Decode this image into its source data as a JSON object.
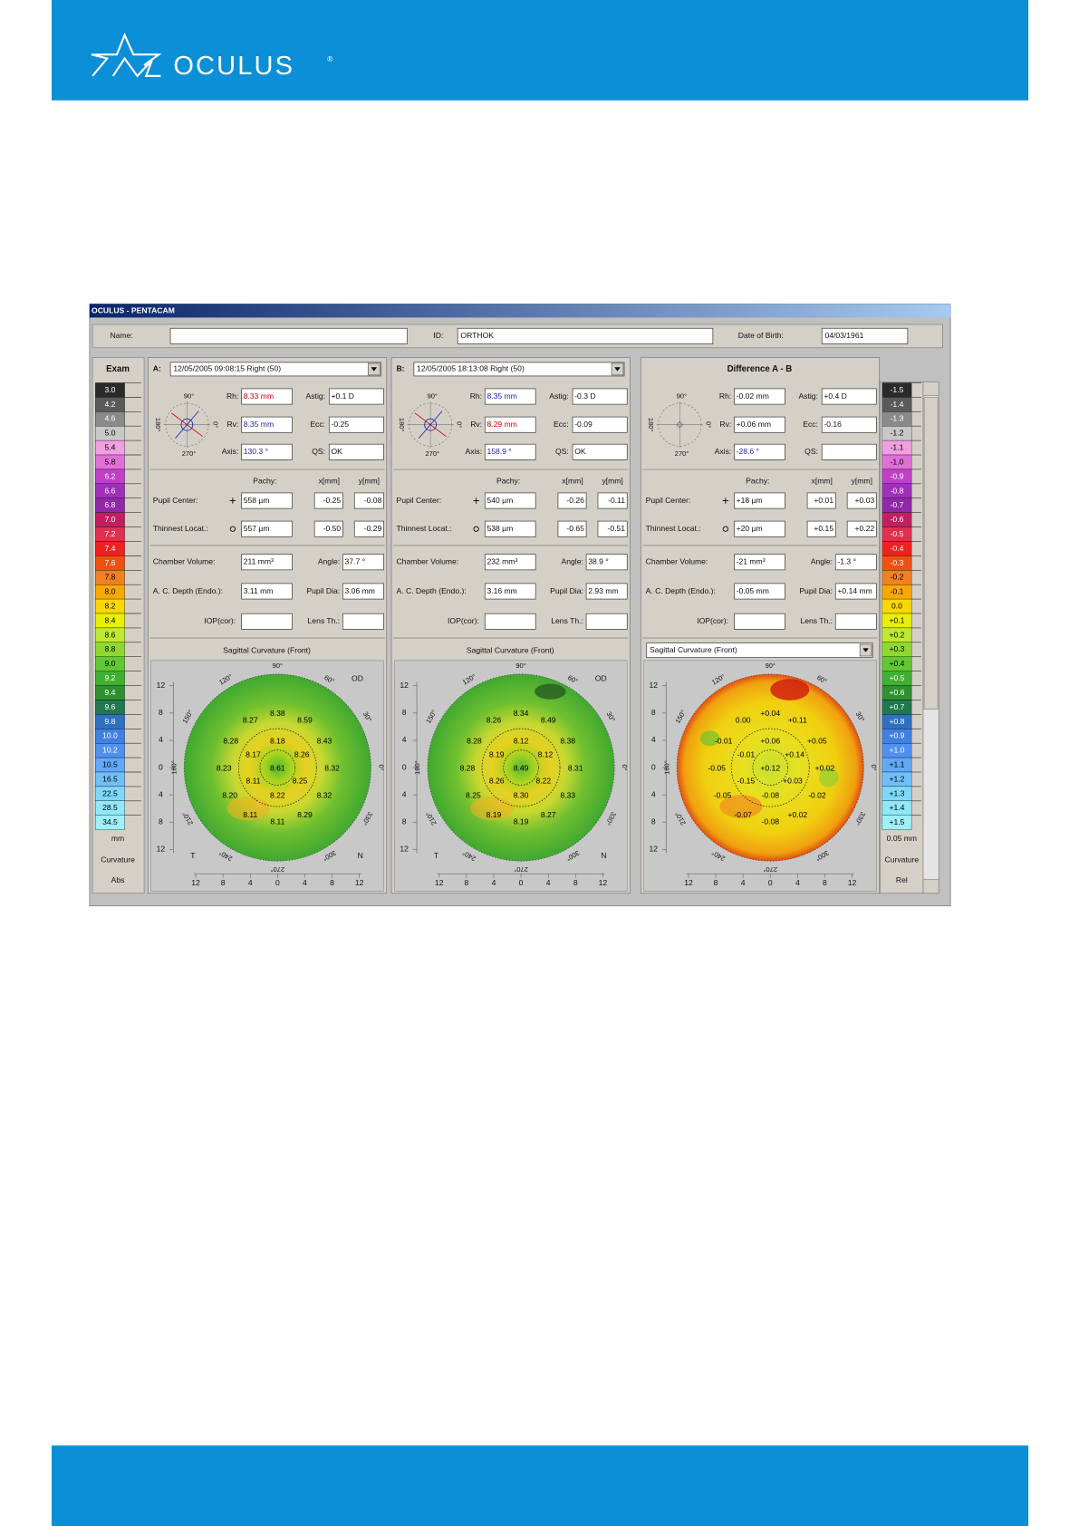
{
  "header": {
    "brand": "OCULUS",
    "registered": "®"
  },
  "window": {
    "title": "OCULUS - PENTACAM",
    "name_label": "Name:",
    "id_label": "ID:",
    "id": "ORTHOK",
    "dob_label": "Date of Birth:",
    "dob": "04/03/1961"
  },
  "exam_scale": {
    "title": "Exam",
    "values": [
      "3.0",
      "4.2",
      "4.6",
      "5.0",
      "5.4",
      "5.8",
      "6.2",
      "6.6",
      "6.8",
      "7.0",
      "7.2",
      "7.4",
      "7.6",
      "7.8",
      "8.0",
      "8.2",
      "8.4",
      "8.6",
      "8.8",
      "9.0",
      "9.2",
      "9.4",
      "9.6",
      "9.8",
      "10.0",
      "10.2",
      "10.5",
      "16.5",
      "22.5",
      "28.5",
      "34.5"
    ],
    "unit": "mm",
    "mode": "Curvature",
    "kind": "Abs"
  },
  "diff_scale": {
    "values": [
      "-1.5",
      "-1.4",
      "-1.3",
      "-1.2",
      "-1.1",
      "-1.0",
      "-0.9",
      "-0.8",
      "-0.7",
      "-0.6",
      "-0.5",
      "-0.4",
      "-0.3",
      "-0.2",
      "-0.1",
      "0.0",
      "+0.1",
      "+0.2",
      "+0.3",
      "+0.4",
      "+0.5",
      "+0.6",
      "+0.7",
      "+0.8",
      "+0.9",
      "+1.0",
      "+1.1",
      "+1.2",
      "+1.3",
      "+1.4",
      "+1.5"
    ],
    "unit": "0.05 mm",
    "mode": "Curvature",
    "kind": "Rel"
  },
  "labels": {
    "rh": "Rh:",
    "rv": "Rv:",
    "axis": "Axis:",
    "astig": "Astig:",
    "ecc": "Ecc:",
    "qs": "QS:",
    "pachy": "Pachy:",
    "x_mm": "x[mm]",
    "y_mm": "y[mm]",
    "pupil": "Pupil Center:",
    "thinnest": "Thinnest Locat.:",
    "chamber": "Chamber Volume:",
    "angle": "Angle:",
    "acd": "A. C. Depth (Endo.):",
    "pupil_dia": "Pupil Dia:",
    "iop": "IOP(cor):",
    "lens": "Lens Th.:"
  },
  "compass": {
    "top": "90°",
    "left": "180°",
    "right": "0°",
    "bottom": "270°"
  },
  "map": {
    "yticks": [
      "12",
      "8",
      "4",
      "0",
      "4",
      "8",
      "12"
    ],
    "xticks": [
      "12",
      "8",
      "4",
      "0",
      "4",
      "8",
      "12"
    ],
    "angles": [
      "90°",
      "60°",
      "30°",
      "0°",
      "330°",
      "300°",
      "270°",
      "240°",
      "210°",
      "180°",
      "150°",
      "120°"
    ],
    "od": "OD",
    "t": "T",
    "n": "N"
  },
  "panels": [
    {
      "label": "A:",
      "exam": "12/05/2005 09:08:15 Right (50)",
      "rh": "8.33 mm",
      "rv": "8.35 mm",
      "axis": "130.3 °",
      "astig": "+0.1 D",
      "ecc": "-0.25",
      "qs": "OK",
      "pupil": [
        "558 µm",
        "-0.25",
        "-0.08"
      ],
      "thinnest": [
        "557 µm",
        "-0.50",
        "-0.29"
      ],
      "chamber": "211 mm³",
      "angle": "37.7 °",
      "acd": "3.11 mm",
      "pupil_dia": "3.06 mm",
      "map_title": "Sagittal Curvature (Front)",
      "map_values": [
        "8.38",
        "8.27",
        "8.59",
        "8.28",
        "8.18",
        "8.43",
        "8.17",
        "8.26",
        "8.23",
        "8.61",
        "8.32",
        "8.11",
        "8.25",
        "8.20",
        "8.22",
        "8.32",
        "8.11",
        "8.29",
        "8.11"
      ]
    },
    {
      "label": "B:",
      "exam": "12/05/2005 18:13:08 Right (50)",
      "rh": "8.35 mm",
      "rv": "8.29 mm",
      "axis": "158.9 °",
      "astig": "-0.3 D",
      "ecc": "-0.09",
      "qs": "OK",
      "pupil": [
        "540 µm",
        "-0.26",
        "-0.11"
      ],
      "thinnest": [
        "538 µm",
        "-0.65",
        "-0.51"
      ],
      "chamber": "232 mm³",
      "angle": "38.9 °",
      "acd": "3.16 mm",
      "pupil_dia": "2.93 mm",
      "map_title": "Sagittal Curvature (Front)",
      "map_values": [
        "8.34",
        "8.26",
        "8.49",
        "8.28",
        "8.12",
        "8.38",
        "8.19",
        "8.12",
        "8.28",
        "8.49",
        "8.31",
        "8.26",
        "8.22",
        "8.25",
        "8.30",
        "8.33",
        "8.19",
        "8.27",
        "8.19"
      ]
    },
    {
      "title": "Difference A - B",
      "rh": "-0.02 mm",
      "rv": "+0.06 mm",
      "axis": "-28.6 °",
      "astig": "+0.4 D",
      "ecc": "-0.16",
      "pupil": [
        "+18 µm",
        "+0.01",
        "+0.03"
      ],
      "thinnest": [
        "+20 µm",
        "+0.15",
        "+0.22"
      ],
      "chamber": "-21 mm³",
      "angle": "-1.3 °",
      "acd": "-0.05 mm",
      "pupil_dia": "+0.14 mm",
      "map_title": "Sagittal Curvature (Front)",
      "map_values": [
        "+0.04",
        "0.00",
        "+0.11",
        "-0.01",
        "+0.06",
        "+0.05",
        "-0.01",
        "+0.14",
        "-0.05",
        "+0.12",
        "+0.02",
        "-0.15",
        "+0.03",
        "-0.05",
        "-0.08",
        "-0.02",
        "-0.07",
        "+0.02",
        "-0.08"
      ]
    }
  ]
}
